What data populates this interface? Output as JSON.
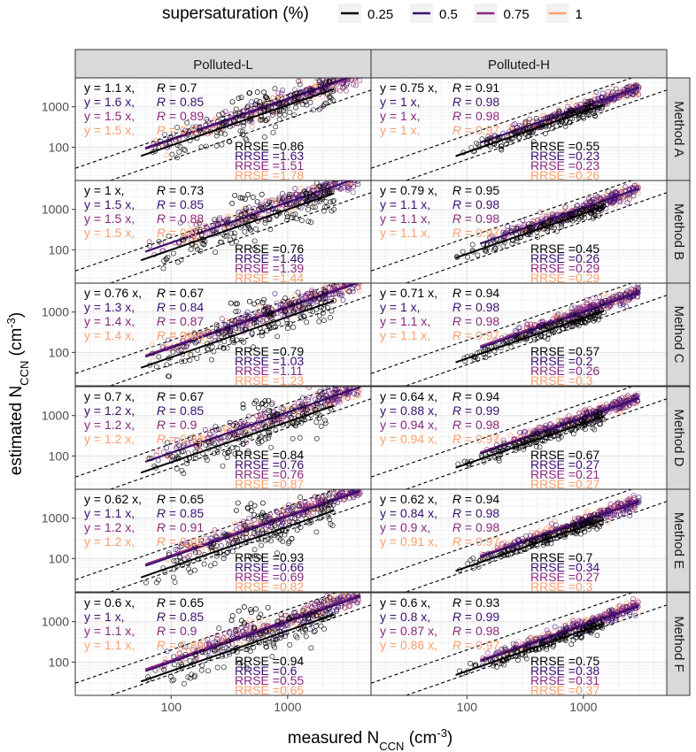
{
  "chart_data": {
    "type": "scatter",
    "x_scale": "log",
    "y_scale": "log",
    "xlim": [
      15,
      5200
    ],
    "ylim": [
      15,
      5200
    ],
    "xlabel": {
      "main": "measured N",
      "sub": "CCN",
      "unit_open": " (cm",
      "unit_sup": "-3",
      "unit_close": ")"
    },
    "ylabel": {
      "main": "estimated N",
      "sub": "CCN",
      "unit_open": " (cm",
      "unit_sup": "-3",
      "unit_close": ")"
    },
    "x_ticks": [
      100,
      1000
    ],
    "x_tick_labels": [
      "100",
      "1000"
    ],
    "y_ticks": [
      100,
      1000
    ],
    "y_tick_labels": [
      "100",
      "1000"
    ],
    "grid": true,
    "reference_lines": "dashed lines y = x/2 and y = 2x",
    "legend": {
      "title": "supersaturation (%)",
      "placement": "top",
      "entries": [
        {
          "label": "0.25",
          "color": "#000004"
        },
        {
          "label": "0.5",
          "color": "#3b0f70"
        },
        {
          "label": "0.75",
          "color": "#8c2981"
        },
        {
          "label": "1",
          "color": "#fe9f6d"
        }
      ]
    },
    "columns": [
      "Polluted-L",
      "Polluted-H"
    ],
    "rows": [
      "Method A",
      "Method B",
      "Method C",
      "Method D",
      "Method E",
      "Method F"
    ],
    "panels": [
      {
        "col": "Polluted-L",
        "row": "Method A",
        "fits": [
          {
            "ss": "0.25",
            "eq": "y = 1.1 x,",
            "R": "0.7",
            "RRSE": "0.86"
          },
          {
            "ss": "0.5",
            "eq": "y = 1.6 x,",
            "R": "0.85",
            "RRSE": "1.63"
          },
          {
            "ss": "0.75",
            "eq": "y = 1.5 x,",
            "R": "0.89",
            "RRSE": "1.51"
          },
          {
            "ss": "1",
            "eq": "y = 1.5 x,",
            "R": "0.9",
            "RRSE": "1.78"
          }
        ]
      },
      {
        "col": "Polluted-H",
        "row": "Method A",
        "fits": [
          {
            "ss": "0.25",
            "eq": "y = 0.75 x,",
            "R": "0.91",
            "RRSE": "0.55"
          },
          {
            "ss": "0.5",
            "eq": "y = 1 x,",
            "R": "0.98",
            "RRSE": "0.23"
          },
          {
            "ss": "0.75",
            "eq": "y = 1 x,",
            "R": "0.98",
            "RRSE": "0.23"
          },
          {
            "ss": "1",
            "eq": "y = 1 x,",
            "R": "0.97",
            "RRSE": "0.26"
          }
        ]
      },
      {
        "col": "Polluted-L",
        "row": "Method B",
        "fits": [
          {
            "ss": "0.25",
            "eq": "y = 1 x,",
            "R": "0.73",
            "RRSE": "0.76"
          },
          {
            "ss": "0.5",
            "eq": "y = 1.5 x,",
            "R": "0.85",
            "RRSE": "1.46"
          },
          {
            "ss": "0.75",
            "eq": "y = 1.5 x,",
            "R": "0.88",
            "RRSE": "1.39"
          },
          {
            "ss": "1",
            "eq": "y = 1.5 x,",
            "R": "0.9",
            "RRSE": "1.44"
          }
        ]
      },
      {
        "col": "Polluted-H",
        "row": "Method B",
        "fits": [
          {
            "ss": "0.25",
            "eq": "y = 0.79 x,",
            "R": "0.95",
            "RRSE": "0.45"
          },
          {
            "ss": "0.5",
            "eq": "y = 1.1 x,",
            "R": "0.98",
            "RRSE": "0.26"
          },
          {
            "ss": "0.75",
            "eq": "y = 1.1 x,",
            "R": "0.98",
            "RRSE": "0.29"
          },
          {
            "ss": "1",
            "eq": "y = 1.1 x,",
            "R": "0.97",
            "RRSE": "0.29"
          }
        ]
      },
      {
        "col": "Polluted-L",
        "row": "Method C",
        "fits": [
          {
            "ss": "0.25",
            "eq": "y = 0.76 x,",
            "R": "0.67",
            "RRSE": "0.79"
          },
          {
            "ss": "0.5",
            "eq": "y = 1.3 x,",
            "R": "0.84",
            "RRSE": "1.03"
          },
          {
            "ss": "0.75",
            "eq": "y = 1.4 x,",
            "R": "0.87",
            "RRSE": "1.11"
          },
          {
            "ss": "1",
            "eq": "y = 1.4 x,",
            "R": "0.88",
            "RRSE": "1.23"
          }
        ]
      },
      {
        "col": "Polluted-H",
        "row": "Method C",
        "fits": [
          {
            "ss": "0.25",
            "eq": "y = 0.71 x,",
            "R": "0.94",
            "RRSE": "0.57"
          },
          {
            "ss": "0.5",
            "eq": "y = 1 x,",
            "R": "0.98",
            "RRSE": "0.2"
          },
          {
            "ss": "0.75",
            "eq": "y = 1.1 x,",
            "R": "0.98",
            "RRSE": "0.26"
          },
          {
            "ss": "1",
            "eq": "y = 1.1 x,",
            "R": "0.97",
            "RRSE": "0.3"
          }
        ]
      },
      {
        "col": "Polluted-L",
        "row": "Method D",
        "fits": [
          {
            "ss": "0.25",
            "eq": "y = 0.7 x,",
            "R": "0.67",
            "RRSE": "0.84"
          },
          {
            "ss": "0.5",
            "eq": "y = 1.2 x,",
            "R": "0.85",
            "RRSE": "0.76"
          },
          {
            "ss": "0.75",
            "eq": "y = 1.2 x,",
            "R": "0.9",
            "RRSE": "0.76"
          },
          {
            "ss": "1",
            "eq": "y = 1.2 x,",
            "R": "0.91",
            "RRSE": "0.87"
          }
        ]
      },
      {
        "col": "Polluted-H",
        "row": "Method D",
        "fits": [
          {
            "ss": "0.25",
            "eq": "y = 0.64 x,",
            "R": "0.94",
            "RRSE": "0.67"
          },
          {
            "ss": "0.5",
            "eq": "y = 0.88 x,",
            "R": "0.99",
            "RRSE": "0.27"
          },
          {
            "ss": "0.75",
            "eq": "y = 0.94 x,",
            "R": "0.98",
            "RRSE": "0.21"
          },
          {
            "ss": "1",
            "eq": "y = 0.94 x,",
            "R": "0.97",
            "RRSE": "0.27"
          }
        ]
      },
      {
        "col": "Polluted-L",
        "row": "Method E",
        "fits": [
          {
            "ss": "0.25",
            "eq": "y = 0.62 x,",
            "R": "0.65",
            "RRSE": "0.93"
          },
          {
            "ss": "0.5",
            "eq": "y = 1.1 x,",
            "R": "0.85",
            "RRSE": "0.66"
          },
          {
            "ss": "0.75",
            "eq": "y = 1.2 x,",
            "R": "0.91",
            "RRSE": "0.69"
          },
          {
            "ss": "1",
            "eq": "y = 1.2 x,",
            "R": "0.91",
            "RRSE": "0.82"
          }
        ]
      },
      {
        "col": "Polluted-H",
        "row": "Method E",
        "fits": [
          {
            "ss": "0.25",
            "eq": "y = 0.62 x,",
            "R": "0.94",
            "RRSE": "0.7"
          },
          {
            "ss": "0.5",
            "eq": "y = 0.84 x,",
            "R": "0.98",
            "RRSE": "0.34"
          },
          {
            "ss": "0.75",
            "eq": "y = 0.9 x,",
            "R": "0.98",
            "RRSE": "0.27"
          },
          {
            "ss": "1",
            "eq": "y = 0.91 x,",
            "R": "0.97",
            "RRSE": "0.3"
          }
        ]
      },
      {
        "col": "Polluted-L",
        "row": "Method F",
        "fits": [
          {
            "ss": "0.25",
            "eq": "y = 0.6 x,",
            "R": "0.65",
            "RRSE": "0.94"
          },
          {
            "ss": "0.5",
            "eq": "y = 1 x,",
            "R": "0.85",
            "RRSE": "0.6"
          },
          {
            "ss": "0.75",
            "eq": "y = 1.1 x,",
            "R": "0.9",
            "RRSE": "0.55"
          },
          {
            "ss": "1",
            "eq": "y = 1.1 x,",
            "R": "0.89",
            "RRSE": "0.65"
          }
        ]
      },
      {
        "col": "Polluted-H",
        "row": "Method F",
        "fits": [
          {
            "ss": "0.25",
            "eq": "y = 0.6 x,",
            "R": "0.93",
            "RRSE": "0.75"
          },
          {
            "ss": "0.5",
            "eq": "y = 0.8 x,",
            "R": "0.99",
            "RRSE": "0.38"
          },
          {
            "ss": "0.75",
            "eq": "y = 0.87 x,",
            "R": "0.98",
            "RRSE": "0.31"
          },
          {
            "ss": "1",
            "eq": "y = 0.86 x,",
            "R": "0.97",
            "RRSE": "0.37"
          }
        ]
      }
    ]
  }
}
